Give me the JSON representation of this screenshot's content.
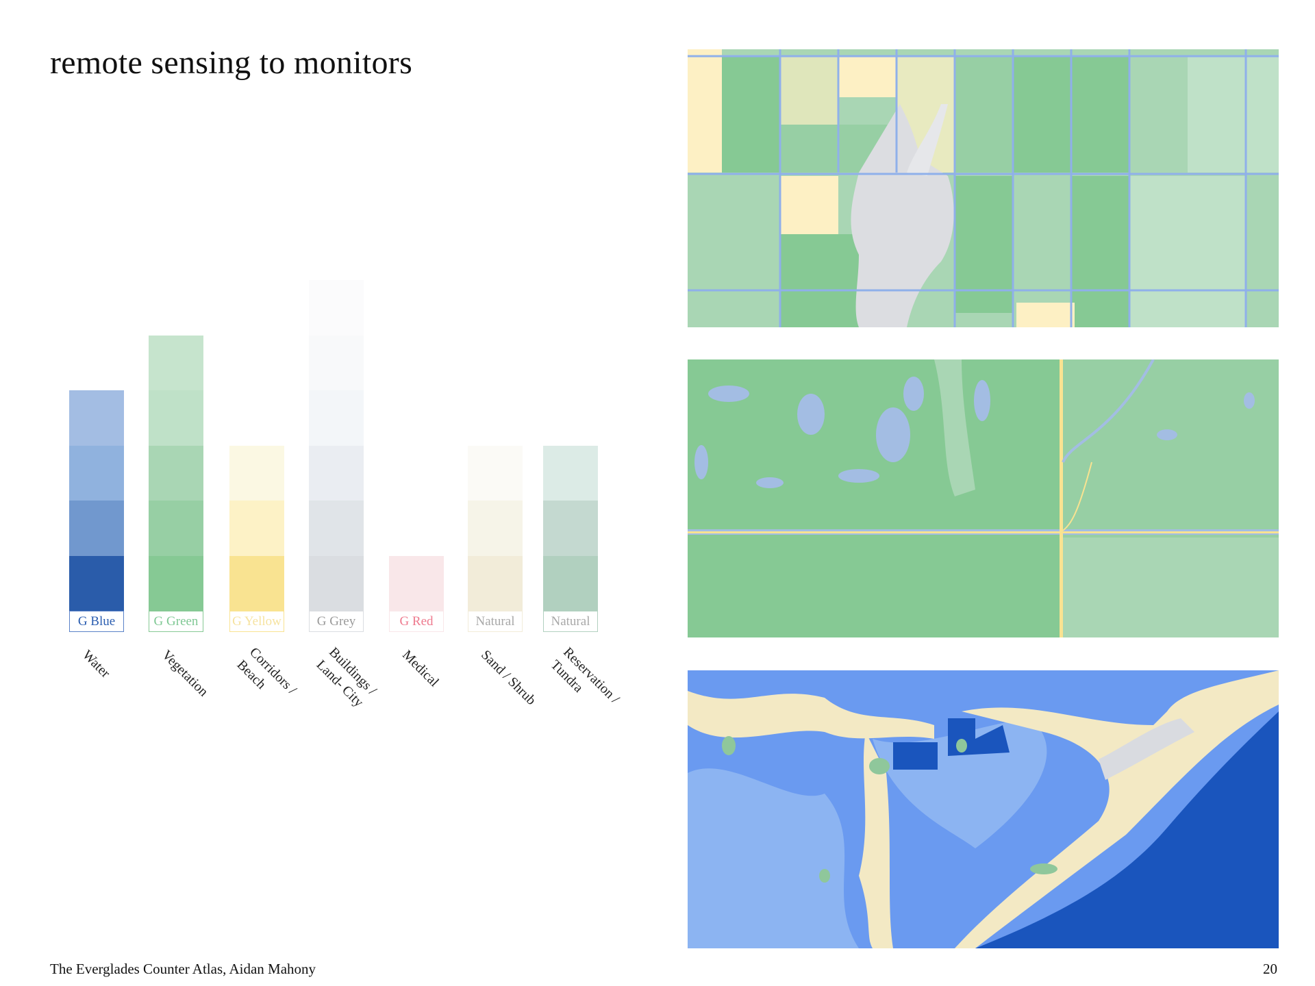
{
  "title": "remote sensing to monitors",
  "legend": [
    {
      "label": "G Blue",
      "category": [
        "Water"
      ],
      "label_color": "#2a5db0",
      "swatches": [
        "#a3bde3",
        "#90b2de",
        "#7198ce",
        "#2a5caa"
      ]
    },
    {
      "label": "G Green",
      "category": [
        "Vegetation"
      ],
      "label_color": "#7fc894",
      "swatches": [
        "#c6e4cd",
        "#bfe1c8",
        "#a9d6b4",
        "#97cfa4",
        "#86c994"
      ]
    },
    {
      "label": "G Yellow",
      "category": [
        "Corridors /",
        "Beach"
      ],
      "label_color": "#f6e3a0",
      "swatches": [
        "#fbf8e3",
        "#fdf2c6",
        "#f9e391"
      ]
    },
    {
      "label": "G Grey",
      "category": [
        "Buildings /",
        "Land- City"
      ],
      "label_color": "#9a9a9a",
      "swatches": [
        "#fbfbfc",
        "#f8f9fa",
        "#f3f6f9",
        "#eaedf2",
        "#e0e4e8",
        "#dadde1"
      ]
    },
    {
      "label": "G Red",
      "category": [
        "Medical"
      ],
      "label_color": "#ee7a8e",
      "swatches": [
        "#f9e7e9"
      ]
    },
    {
      "label": "Natural",
      "category": [
        "Sand / Shrub"
      ],
      "label_color": "#a8a8a8",
      "swatches": [
        "#fbfaf6",
        "#f6f4e8",
        "#f2ecd9"
      ]
    },
    {
      "label": "Natural",
      "category": [
        "Reservation /",
        "Tundra"
      ],
      "label_color": "#a8a8a8",
      "swatches": [
        "#dcebe6",
        "#c4d9d0",
        "#b1d0bf"
      ]
    }
  ],
  "maps": [
    {
      "name": "agricultural fields map"
    },
    {
      "name": "wetland vegetation map"
    },
    {
      "name": "coastal water map"
    }
  ],
  "footer": "The Everglades Counter Atlas, Aidan Mahony",
  "page_number": "20"
}
